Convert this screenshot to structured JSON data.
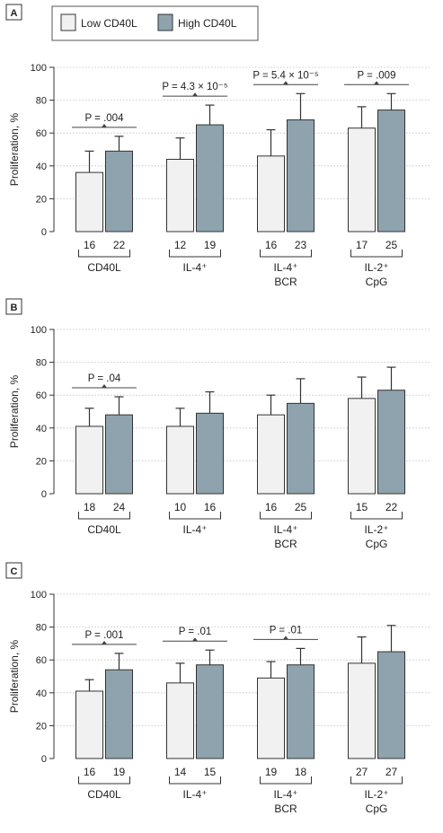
{
  "legend": {
    "items": [
      {
        "label": "Low CD40L",
        "color": "#f1f1f1"
      },
      {
        "label": "High CD40L",
        "color": "#8ea3ad"
      }
    ]
  },
  "colors": {
    "low": "#f1f1f1",
    "high": "#8ea3ad",
    "stroke": "#333333",
    "bracket": "#444444",
    "grid": "#bdbdbd"
  },
  "chart_data": [
    {
      "type": "bar",
      "panel": "A",
      "ylabel": "Proliferation, %",
      "ylim": [
        0,
        100
      ],
      "yticks": [
        0,
        20,
        40,
        60,
        80,
        100
      ],
      "grid": true,
      "series_keys": [
        "Low CD40L",
        "High CD40L"
      ],
      "groups": [
        {
          "label": [
            "CD40L"
          ],
          "low": {
            "value": 36,
            "err_hi": 49,
            "n": "16"
          },
          "high": {
            "value": 49,
            "err_hi": 58,
            "n": "22"
          },
          "p": "P = .004"
        },
        {
          "label": [
            "IL-4⁺"
          ],
          "low": {
            "value": 44,
            "err_hi": 57,
            "n": "12"
          },
          "high": {
            "value": 65,
            "err_hi": 77,
            "n": "19"
          },
          "p": "P = 4.3 × 10⁻⁵"
        },
        {
          "label": [
            "IL-4⁺",
            "BCR"
          ],
          "low": {
            "value": 46,
            "err_hi": 62,
            "n": "16"
          },
          "high": {
            "value": 68,
            "err_hi": 84,
            "n": "23"
          },
          "p": "P = 5.4 × 10⁻⁵"
        },
        {
          "label": [
            "IL-2⁺",
            "CpG"
          ],
          "low": {
            "value": 63,
            "err_hi": 76,
            "n": "17"
          },
          "high": {
            "value": 74,
            "err_hi": 84,
            "n": "25"
          },
          "p": "P = .009"
        }
      ]
    },
    {
      "type": "bar",
      "panel": "B",
      "ylabel": "Proliferation, %",
      "ylim": [
        0,
        100
      ],
      "yticks": [
        0,
        20,
        40,
        60,
        80,
        100
      ],
      "grid": true,
      "series_keys": [
        "Low CD40L",
        "High CD40L"
      ],
      "groups": [
        {
          "label": [
            "CD40L"
          ],
          "low": {
            "value": 41,
            "err_hi": 52,
            "n": "18"
          },
          "high": {
            "value": 48,
            "err_hi": 59,
            "n": "24"
          },
          "p": "P = .04"
        },
        {
          "label": [
            "IL-4⁺"
          ],
          "low": {
            "value": 41,
            "err_hi": 52,
            "n": "10"
          },
          "high": {
            "value": 49,
            "err_hi": 62,
            "n": "16"
          },
          "p": ""
        },
        {
          "label": [
            "IL-4⁺",
            "BCR"
          ],
          "low": {
            "value": 48,
            "err_hi": 60,
            "n": "16"
          },
          "high": {
            "value": 55,
            "err_hi": 70,
            "n": "25"
          },
          "p": ""
        },
        {
          "label": [
            "IL-2⁺",
            "CpG"
          ],
          "low": {
            "value": 58,
            "err_hi": 71,
            "n": "15"
          },
          "high": {
            "value": 63,
            "err_hi": 77,
            "n": "22"
          },
          "p": ""
        }
      ]
    },
    {
      "type": "bar",
      "panel": "C",
      "ylabel": "Proliferation, %",
      "ylim": [
        0,
        100
      ],
      "yticks": [
        0,
        20,
        40,
        60,
        80,
        100
      ],
      "grid": true,
      "series_keys": [
        "Low CD40L",
        "High CD40L"
      ],
      "groups": [
        {
          "label": [
            "CD40L"
          ],
          "low": {
            "value": 41,
            "err_hi": 48,
            "n": "16"
          },
          "high": {
            "value": 54,
            "err_hi": 64,
            "n": "19"
          },
          "p": "P = .001"
        },
        {
          "label": [
            "IL-4⁺"
          ],
          "low": {
            "value": 46,
            "err_hi": 58,
            "n": "14"
          },
          "high": {
            "value": 57,
            "err_hi": 66,
            "n": "15"
          },
          "p": "P = .01"
        },
        {
          "label": [
            "IL-4⁺",
            "BCR"
          ],
          "low": {
            "value": 49,
            "err_hi": 59,
            "n": "19"
          },
          "high": {
            "value": 57,
            "err_hi": 67,
            "n": "18"
          },
          "p": "P = .01"
        },
        {
          "label": [
            "IL-2⁺",
            "CpG"
          ],
          "low": {
            "value": 58,
            "err_hi": 74,
            "n": "27"
          },
          "high": {
            "value": 65,
            "err_hi": 81,
            "n": "27"
          },
          "p": ""
        }
      ]
    }
  ]
}
